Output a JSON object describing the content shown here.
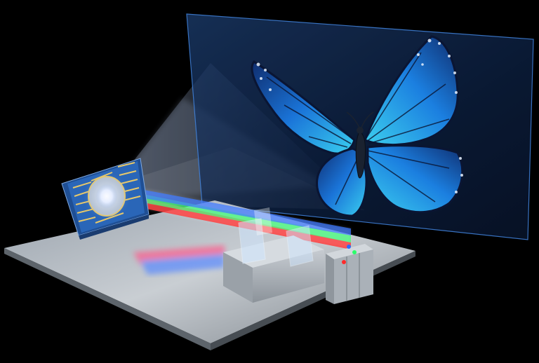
{
  "scene": {
    "subject": "butterfly-hologram-projection",
    "colors": {
      "background": "#000000",
      "laser_red": "#ff2a2a",
      "laser_green": "#2bff6a",
      "laser_blue": "#2a6bff",
      "chip_blue": "#2a66b8",
      "screen_tint": "#2c5a9a",
      "butterfly_blue": "#1f8ee8",
      "butterfly_cyan": "#38c9e9"
    }
  }
}
